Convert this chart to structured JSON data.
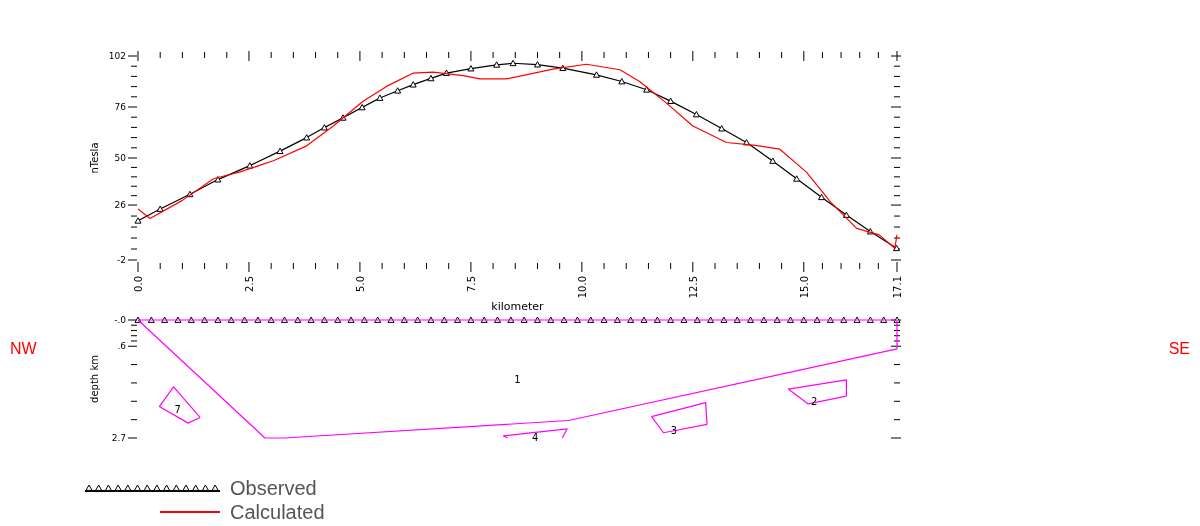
{
  "chart_data": [
    {
      "type": "line",
      "xlabel": "kilometer",
      "ylabel": "nTesla",
      "xlim": [
        0,
        17.1
      ],
      "ylim": [
        -2,
        102
      ],
      "xticks": [
        {
          "value": 0,
          "label": "0.0"
        },
        2.5,
        {
          "value": 5,
          "label": "5.0"
        },
        7.5,
        {
          "value": 10,
          "label": "10.0"
        },
        12.5,
        {
          "value": 15,
          "label": "15.0"
        },
        17.1
      ],
      "yticks": [
        -2,
        26,
        50,
        76,
        102
      ],
      "grid": false,
      "legend": "bottom left",
      "series": [
        {
          "name": "Observed",
          "color": "#000000",
          "marker": "triangle",
          "x": [
            0,
            0.5,
            1.17,
            1.8,
            2.52,
            3.2,
            3.8,
            4.2,
            4.62,
            5.05,
            5.45,
            5.85,
            6.2,
            6.6,
            6.95,
            7.5,
            8.08,
            8.45,
            9.0,
            9.57,
            10.33,
            10.9,
            11.46,
            12.0,
            12.58,
            13.15,
            13.71,
            14.3,
            14.84,
            15.4,
            15.96,
            16.5,
            17.09
          ],
          "values": [
            18,
            24,
            31.5,
            39,
            46.1,
            53.5,
            60.4,
            65.5,
            70.5,
            75.8,
            80.6,
            84.3,
            87.4,
            90.6,
            93.3,
            95.6,
            97.5,
            98.3,
            97.6,
            95.8,
            92.4,
            89,
            84.8,
            79,
            72.2,
            65,
            57.9,
            48.5,
            39.4,
            30,
            20.9,
            12.5,
            4
          ]
        },
        {
          "name": "Calculated",
          "color": "#ff0000",
          "marker": "none",
          "x": [
            0,
            0.27,
            1.0,
            1.7,
            2.3,
            3.05,
            3.8,
            4.4,
            5.07,
            5.6,
            6.2,
            6.65,
            7.33,
            7.7,
            8.3,
            9.35,
            10.1,
            10.86,
            11.3,
            11.9,
            12.5,
            13.26,
            13.86,
            14.46,
            15.06,
            15.6,
            16.19,
            16.7,
            17.05,
            17.1
          ],
          "values": [
            24,
            19.2,
            28.4,
            39.4,
            42.9,
            48.6,
            56.2,
            66.3,
            78.9,
            86.5,
            93.3,
            93.8,
            92,
            90.3,
            90.3,
            95.3,
            97.8,
            95,
            89,
            78.1,
            66.3,
            57.9,
            56.6,
            54.5,
            42.8,
            27.6,
            14.1,
            10.8,
            4,
            10.8
          ]
        }
      ]
    },
    {
      "type": "line",
      "ylabel": "depth km",
      "xlim": [
        0,
        17.1
      ],
      "ylim": [
        2.7,
        0
      ],
      "yticks": [
        {
          "value": 0,
          "label": "-.0"
        },
        {
          "value": 0.6,
          "label": ".6"
        },
        2.7
      ],
      "tick_labels": "y",
      "legend": false,
      "annotations": [
        "NW",
        "1",
        "SE"
      ],
      "series": [
        {
          "type": "scatter",
          "color": "#000000",
          "marker": "triangle",
          "x": [
            0,
            0.3,
            0.6,
            0.9,
            1.2,
            1.5,
            1.8,
            2.1,
            2.4,
            2.7,
            3.0,
            3.3,
            3.6,
            3.9,
            4.2,
            4.5,
            4.8,
            5.1,
            5.4,
            5.7,
            6.0,
            6.3,
            6.6,
            6.9,
            7.2,
            7.5,
            7.8,
            8.1,
            8.4,
            8.7,
            9.0,
            9.3,
            9.6,
            9.9,
            10.2,
            10.5,
            10.8,
            11.1,
            11.4,
            11.7,
            12.0,
            12.3,
            12.6,
            12.9,
            13.2,
            13.5,
            13.8,
            14.1,
            14.4,
            14.7,
            15.0,
            15.3,
            15.6,
            15.9,
            16.2,
            16.5,
            16.8,
            17.1
          ],
          "values": [
            0,
            0,
            0,
            0,
            0,
            0,
            0,
            0,
            0,
            0,
            0,
            0,
            0,
            0,
            0,
            0,
            0,
            0,
            0,
            0,
            0,
            0,
            0,
            0,
            0,
            0,
            0,
            0,
            0,
            0,
            0,
            0,
            0,
            0,
            0,
            0,
            0,
            0,
            0,
            0,
            0,
            0,
            0,
            0,
            0,
            0,
            0,
            0,
            0,
            0,
            0,
            0,
            0,
            0,
            0,
            0,
            0,
            0
          ]
        },
        {
          "color": "#ff00ff",
          "marker": "none",
          "x": [
            0,
            17.1
          ],
          "values": [
            0,
            0
          ]
        },
        {
          "color": "#ff00ff",
          "marker": "none",
          "x": [
            0,
            2.86,
            3.3,
            9.7,
            17.1,
            17.1
          ],
          "values": [
            0,
            2.7,
            2.7,
            2.3,
            0.66,
            0
          ]
        },
        {
          "color": "#ff00ff",
          "marker": "none",
          "x": [
            14.65,
            15.96,
            15.96
          ],
          "values": [
            1.58,
            1.37,
            1.74
          ]
        },
        {
          "name": "2",
          "color": "#ff00ff",
          "marker": "none",
          "x": [
            14.65,
            15.1,
            15.96
          ],
          "values": [
            1.58,
            1.92,
            1.74
          ]
        },
        {
          "color": "#ff00ff",
          "marker": "none",
          "x": [
            11.57,
            12.79,
            12.82
          ],
          "values": [
            2.21,
            1.89,
            2.39
          ]
        },
        {
          "name": "3",
          "color": "#ff00ff",
          "marker": "none",
          "x": [
            11.57,
            11.84,
            12.82
          ],
          "values": [
            2.21,
            2.58,
            2.39
          ]
        },
        {
          "color": "#ff00ff",
          "marker": "none",
          "x": [
            8.23,
            8.33
          ],
          "values": [
            2.65,
            2.7
          ]
        },
        {
          "color": "#ff00ff",
          "marker": "none",
          "x": [
            9.56,
            9.67
          ],
          "values": [
            2.7,
            2.49
          ]
        },
        {
          "name": "4",
          "color": "#ff00ff",
          "marker": "none",
          "x": [
            8.23,
            9.67
          ],
          "values": [
            2.65,
            2.49
          ]
        },
        {
          "name": "7",
          "color": "#ff00ff",
          "marker": "none",
          "x": [
            0.48,
            0.8,
            1.4
          ],
          "values": [
            1.98,
            1.53,
            2.23
          ]
        },
        {
          "color": "#ff00ff",
          "marker": "none",
          "x": [
            0.48,
            1.13,
            1.4
          ],
          "values": [
            1.98,
            2.36,
            2.23
          ]
        }
      ]
    }
  ]
}
